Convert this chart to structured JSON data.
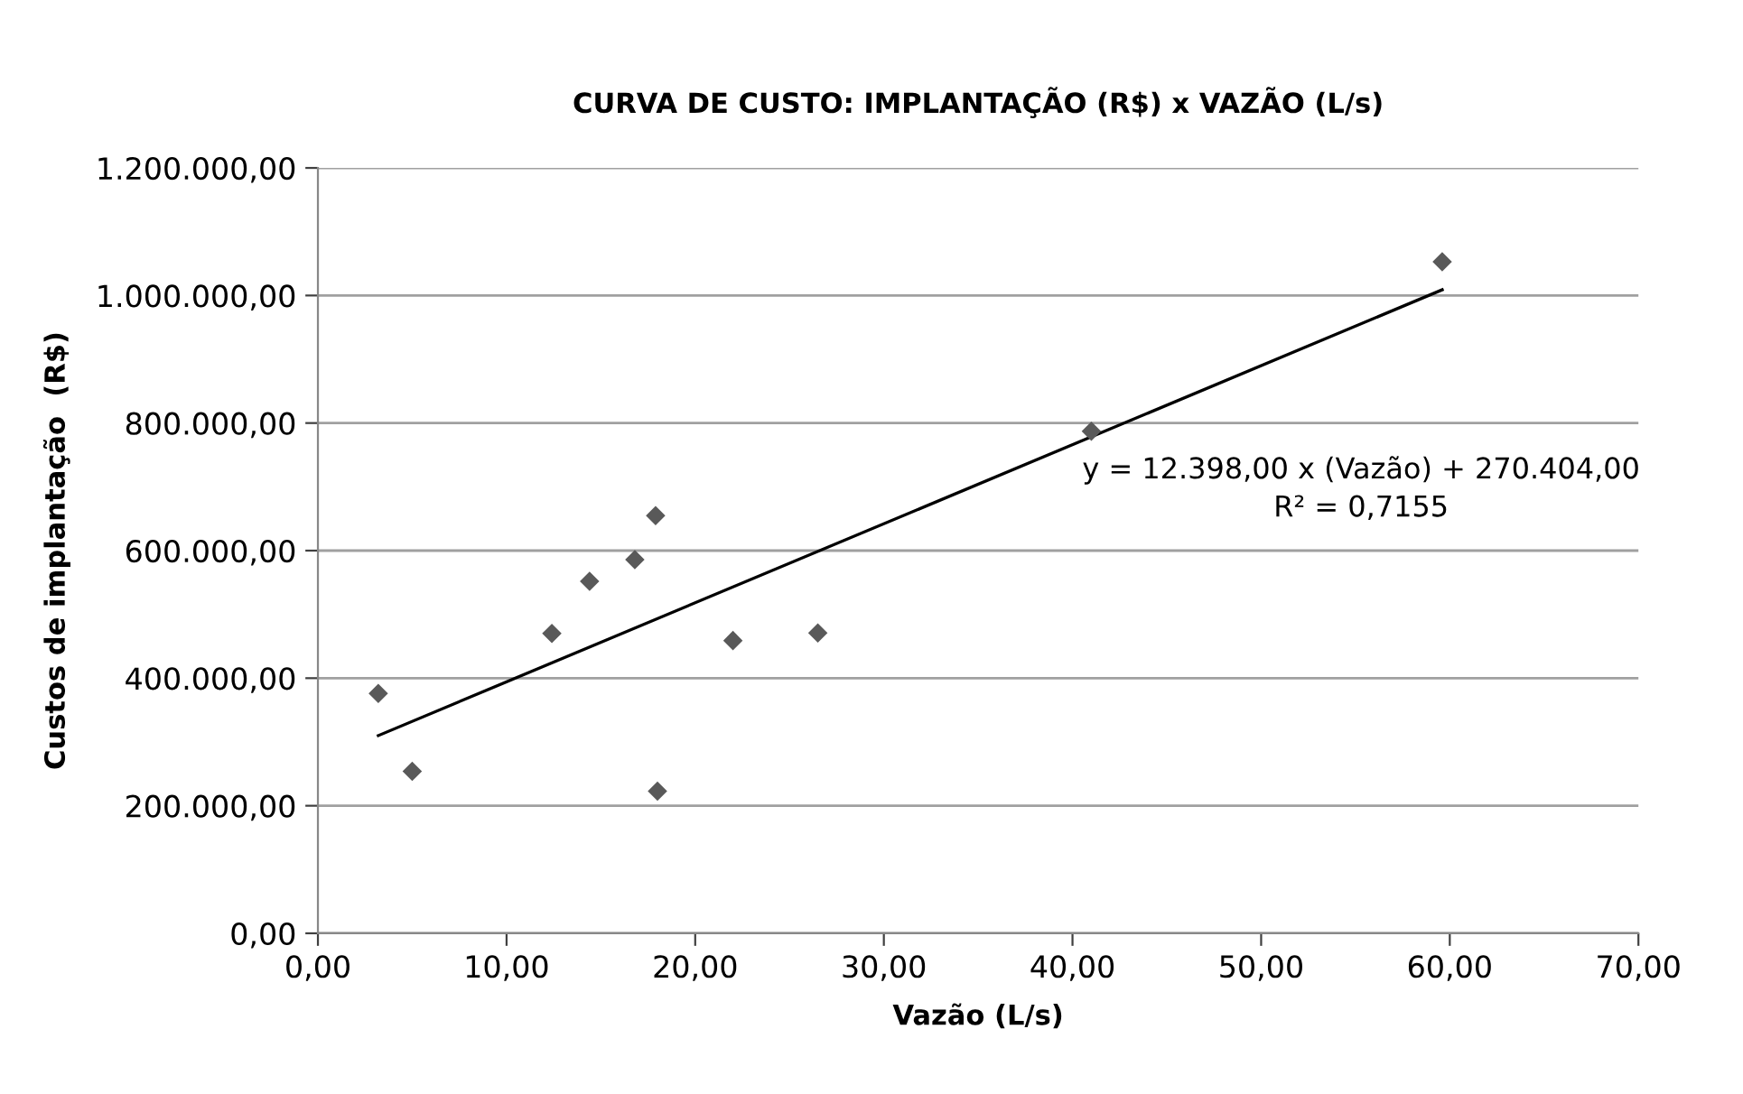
{
  "chart_data": {
    "type": "scatter",
    "title": "CURVA DE CUSTO: IMPLANTAÇÃO (R$) x VAZÃO (L/s)",
    "xlabel": "Vazão (L/s)",
    "ylabel": "Custos de implantação  (R$)",
    "series": [
      {
        "color": "#595959",
        "marker": "diamond",
        "x": [
          3.2,
          5.0,
          12.4,
          14.4,
          16.8,
          17.9,
          18.0,
          22.0,
          26.5,
          41.0,
          59.6
        ],
        "values": [
          376000,
          254000,
          470000,
          552000,
          586000,
          655000,
          223000,
          459000,
          471000,
          787000,
          1053000
        ]
      },
      {
        "type": "line",
        "color": "#000000",
        "line_style": "solid",
        "x": [
          3.2,
          59.6
        ],
        "values": [
          310000,
          1009000
        ]
      }
    ],
    "annotations": [
      "y = 12.398,00 x (Vazão) + 270.404,00",
      "R² = 0,7155"
    ],
    "xlim": [
      0,
      70
    ],
    "ylim": [
      0,
      1200000
    ],
    "xticks": [
      {
        "value": 0,
        "label": "0,00"
      },
      {
        "value": 10,
        "label": "10,00"
      },
      {
        "value": 20,
        "label": "20,00"
      },
      {
        "value": 30,
        "label": "30,00"
      },
      {
        "value": 40,
        "label": "40,00"
      },
      {
        "value": 50,
        "label": "50,00"
      },
      {
        "value": 60,
        "label": "60,00"
      },
      {
        "value": 70,
        "label": "70,00"
      }
    ],
    "yticks": [
      {
        "value": 0,
        "label": "0,00"
      },
      {
        "value": 200000,
        "label": "200.000,00"
      },
      {
        "value": 400000,
        "label": "400.000,00"
      },
      {
        "value": 600000,
        "label": "600.000,00"
      },
      {
        "value": 800000,
        "label": "800.000,00"
      },
      {
        "value": 1000000,
        "label": "1.000.000,00"
      },
      {
        "value": 1200000,
        "label": "1.200.000,00"
      }
    ],
    "grid": "y"
  }
}
